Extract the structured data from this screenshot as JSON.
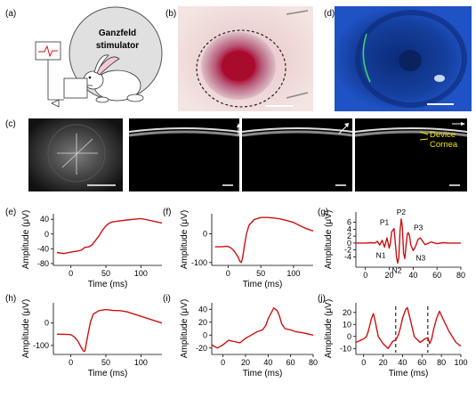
{
  "panel_labels": [
    "(a)",
    "(b)",
    "(c)",
    "(d)",
    "(e)",
    "(f)",
    "(g)",
    "(h)",
    "(i)",
    "(j)"
  ],
  "panel_a": {
    "stimulator_label_line1": "Ganzfeld",
    "stimulator_label_line2": "stimulator"
  },
  "panel_c": {
    "device_label": "Device",
    "cornea_label": "Cornea"
  },
  "colors": {
    "trace": "#cc1111",
    "annotation": "#f2e200",
    "flash_bg": "#1541b8"
  },
  "chart_data": [
    {
      "id": "e",
      "type": "line",
      "xlabel": "Time (ms)",
      "ylabel": "Amplitude (μV)",
      "xlim": [
        -25,
        130
      ],
      "ylim": [
        -85,
        55
      ],
      "xticks": [
        0,
        50,
        100
      ],
      "yticks": [
        -80,
        -40,
        0,
        40
      ],
      "series": [
        {
          "x": [
            -20,
            -10,
            0,
            10,
            15,
            20,
            25,
            30,
            35,
            40,
            45,
            50,
            55,
            60,
            70,
            80,
            90,
            100,
            110,
            120,
            130
          ],
          "y": [
            -50,
            -53,
            -49,
            -46,
            -44,
            -36,
            -35,
            -30,
            -18,
            -5,
            10,
            22,
            30,
            33,
            36,
            38,
            40,
            42,
            38,
            34,
            30
          ]
        }
      ]
    },
    {
      "id": "f",
      "type": "line",
      "xlabel": "Time (ms)",
      "ylabel": "Amplitude (μV)",
      "xlim": [
        -25,
        130
      ],
      "ylim": [
        -110,
        70
      ],
      "xticks": [
        0,
        50,
        100
      ],
      "yticks": [
        -100,
        0
      ],
      "series": [
        {
          "x": [
            -20,
            -10,
            -5,
            0,
            5,
            10,
            15,
            18,
            20,
            22,
            25,
            28,
            32,
            40,
            50,
            60,
            70,
            80,
            90,
            100,
            110,
            120,
            130
          ],
          "y": [
            -45,
            -45,
            -44,
            -44,
            -50,
            -62,
            -80,
            -95,
            -100,
            -85,
            -40,
            0,
            30,
            50,
            57,
            57,
            55,
            52,
            46,
            40,
            28,
            18,
            10
          ]
        }
      ]
    },
    {
      "id": "g",
      "type": "line",
      "xlabel": "",
      "ylabel": "Amplitude (μV)",
      "xlim": [
        -8,
        80
      ],
      "ylim": [
        -7,
        9
      ],
      "xticks": [
        0,
        20,
        40,
        60,
        80
      ],
      "yticks": [
        -4,
        -2,
        0,
        2,
        4,
        6
      ],
      "annotations": [
        "P1",
        "P2",
        "P3",
        "N1",
        "N2",
        "N3"
      ],
      "series": [
        {
          "x": [
            -8,
            0,
            5,
            8,
            10,
            12,
            14,
            16,
            18,
            20,
            21,
            22,
            24,
            26,
            27,
            28,
            29,
            30,
            31,
            32,
            33,
            34,
            35,
            36,
            37,
            38,
            40,
            42,
            44,
            46,
            48,
            50,
            55,
            60,
            65,
            70,
            75,
            80
          ],
          "y": [
            0,
            0,
            0.1,
            0,
            0.5,
            -0.6,
            0.8,
            -1.2,
            1.5,
            -1.5,
            0.3,
            3.2,
            4.2,
            -3.8,
            -5.8,
            -4.2,
            3.5,
            7,
            4.5,
            -3,
            -4.5,
            -1,
            2.5,
            3,
            2,
            -0.5,
            -2.2,
            -1,
            1,
            1.5,
            0.5,
            -0.5,
            0.3,
            -0.2,
            0.1,
            0,
            0,
            0
          ]
        }
      ]
    },
    {
      "id": "h",
      "type": "line",
      "xlabel": "Time (ms)",
      "ylabel": "Amplitude (μV)",
      "xlim": [
        -25,
        130
      ],
      "ylim": [
        -140,
        90
      ],
      "xticks": [
        0,
        50,
        100
      ],
      "yticks": [
        -100,
        0
      ],
      "series": [
        {
          "x": [
            -20,
            -10,
            0,
            5,
            10,
            15,
            18,
            20,
            22,
            25,
            28,
            32,
            40,
            50,
            60,
            70,
            80,
            90,
            100,
            110,
            120,
            130
          ],
          "y": [
            -50,
            -50,
            -52,
            -62,
            -80,
            -110,
            -125,
            -125,
            -90,
            -40,
            5,
            40,
            55,
            60,
            56,
            55,
            50,
            40,
            30,
            20,
            10,
            0
          ]
        }
      ]
    },
    {
      "id": "i",
      "type": "line",
      "xlabel": "Time (ms)",
      "ylabel": "Amplitude (μV)",
      "xlim": [
        -10,
        80
      ],
      "ylim": [
        -30,
        50
      ],
      "xticks": [
        0,
        20,
        40,
        60,
        80
      ],
      "yticks": [
        -20,
        0,
        20,
        40
      ],
      "series": [
        {
          "x": [
            -10,
            -5,
            0,
            5,
            10,
            15,
            20,
            25,
            30,
            35,
            38,
            40,
            42,
            45,
            48,
            50,
            52,
            55,
            60,
            65,
            70,
            75,
            80
          ],
          "y": [
            -15,
            -20,
            -15,
            -8,
            -10,
            -12,
            -5,
            0,
            5,
            8,
            15,
            25,
            32,
            42,
            38,
            30,
            18,
            10,
            8,
            5,
            4,
            2,
            0
          ]
        }
      ]
    },
    {
      "id": "j",
      "type": "line",
      "xlabel": "Time (ms)",
      "ylabel": "Amplitude (μV)",
      "xlim": [
        -8,
        100
      ],
      "ylim": [
        -15,
        28
      ],
      "xticks": [
        0,
        20,
        40,
        60,
        80,
        100
      ],
      "yticks": [
        -10,
        0,
        10,
        20
      ],
      "dashed_markers": [
        33,
        66
      ],
      "series": [
        {
          "x": [
            -8,
            0,
            3,
            5,
            8,
            10,
            12,
            15,
            20,
            25,
            30,
            33,
            36,
            38,
            40,
            43,
            45,
            48,
            52,
            58,
            63,
            66,
            68,
            70,
            72,
            75,
            78,
            82,
            88,
            95,
            100
          ],
          "y": [
            -5,
            -2,
            0,
            5,
            15,
            19,
            12,
            0,
            -6,
            -10,
            -4,
            -3,
            2,
            8,
            15,
            22,
            24,
            14,
            0,
            -5,
            -2,
            -1,
            -6,
            -2,
            6,
            15,
            21,
            14,
            4,
            -5,
            -8
          ]
        }
      ]
    }
  ]
}
